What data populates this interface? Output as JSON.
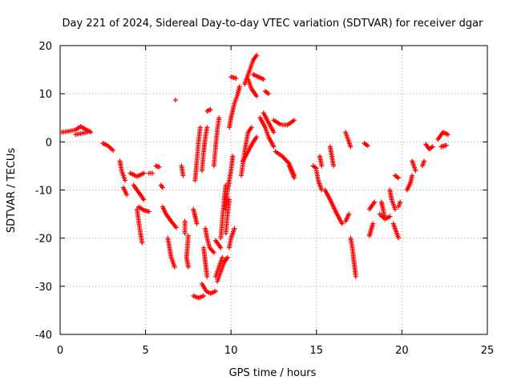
{
  "chart_data": {
    "type": "scatter",
    "title": "Day 221 of 2024, Sidereal Day-to-day VTEC variation (SDTVAR) for receiver dgar",
    "xlabel": "GPS time / hours",
    "ylabel": "SDTVAR / TECUs",
    "xlim": [
      0,
      25
    ],
    "ylim": [
      -40,
      20
    ],
    "x_ticks": [
      "0",
      "5",
      "10",
      "15",
      "20",
      "25"
    ],
    "y_ticks": [
      "20",
      "10",
      "0",
      "-10",
      "-20",
      "-30",
      "-40"
    ],
    "grid": true,
    "marker": "+",
    "colors": {
      "points": "#ff0000",
      "grid": "#a0a0a0",
      "axes": "#000000"
    },
    "series": [
      {
        "segments": [
          [
            [
              0.1,
              2
            ],
            [
              0.5,
              2.2
            ],
            [
              0.9,
              2.5
            ],
            [
              1.2,
              3.2
            ],
            [
              1.5,
              2.6
            ],
            [
              1.8,
              2
            ]
          ],
          [
            [
              0.9,
              1.5
            ],
            [
              1.3,
              1.8
            ],
            [
              1.6,
              2
            ]
          ],
          [
            [
              2.5,
              -0.3
            ],
            [
              2.8,
              -0.8
            ],
            [
              3.1,
              -1.8
            ]
          ],
          [
            [
              3.5,
              -4
            ],
            [
              3.6,
              -6
            ],
            [
              3.8,
              -8
            ]
          ],
          [
            [
              3.7,
              -9.5
            ],
            [
              3.9,
              -11
            ]
          ],
          [
            [
              4.1,
              -6.5
            ],
            [
              4.5,
              -7.2
            ],
            [
              4.9,
              -6.5
            ]
          ],
          [
            [
              4.3,
              -9
            ],
            [
              4.6,
              -10.5
            ],
            [
              4.9,
              -12
            ]
          ],
          [
            [
              4.5,
              -14
            ],
            [
              4.6,
              -16.5
            ],
            [
              4.7,
              -19
            ],
            [
              4.8,
              -21
            ]
          ],
          [
            [
              4.6,
              -13.5
            ],
            [
              4.9,
              -14.2
            ],
            [
              5.2,
              -14.5
            ]
          ],
          [
            [
              5.2,
              -6.5
            ],
            [
              5.4,
              -6.5
            ]
          ],
          [
            [
              5.6,
              -5
            ],
            [
              5.8,
              -5.2
            ]
          ],
          [
            [
              5.9,
              -9
            ],
            [
              6.0,
              -9.5
            ]
          ],
          [
            [
              6.0,
              -13.5
            ],
            [
              6.2,
              -15
            ],
            [
              6.5,
              -16.5
            ],
            [
              6.8,
              -17.8
            ]
          ],
          [
            [
              6.3,
              -20
            ],
            [
              6.4,
              -22
            ],
            [
              6.5,
              -24
            ],
            [
              6.7,
              -26
            ]
          ],
          [
            [
              6.75,
              8.7
            ]
          ],
          [
            [
              7.1,
              -5
            ],
            [
              7.2,
              -7
            ]
          ],
          [
            [
              7.3,
              -16.5
            ],
            [
              7.3,
              -19
            ]
          ],
          [
            [
              7.5,
              -19.5
            ],
            [
              7.45,
              -22
            ],
            [
              7.4,
              -24
            ],
            [
              7.5,
              -26
            ]
          ],
          [
            [
              7.8,
              -14
            ],
            [
              7.9,
              -15.5
            ],
            [
              8.0,
              -17
            ]
          ],
          [
            [
              7.9,
              -8
            ],
            [
              8.0,
              -4
            ],
            [
              8.1,
              0
            ],
            [
              8.2,
              3
            ]
          ],
          [
            [
              8.3,
              -6
            ],
            [
              8.4,
              -2
            ],
            [
              8.5,
              1
            ],
            [
              8.6,
              3
            ]
          ],
          [
            [
              7.8,
              -32
            ],
            [
              8.1,
              -32.4
            ],
            [
              8.4,
              -32
            ]
          ],
          [
            [
              8.3,
              -29.5
            ],
            [
              8.55,
              -31
            ],
            [
              8.8,
              -31.5
            ],
            [
              9.1,
              -31
            ]
          ],
          [
            [
              8.5,
              -18
            ],
            [
              8.6,
              -20
            ],
            [
              8.75,
              -22
            ],
            [
              9.0,
              -23
            ]
          ],
          [
            [
              8.4,
              -22
            ],
            [
              8.5,
              -25
            ],
            [
              8.6,
              -28
            ]
          ],
          [
            [
              8.6,
              6.4
            ],
            [
              8.8,
              6.7
            ]
          ],
          [
            [
              9.0,
              -5
            ],
            [
              9.1,
              -1
            ],
            [
              9.2,
              2.5
            ],
            [
              9.3,
              5
            ]
          ],
          [
            [
              9.1,
              -20.5
            ],
            [
              9.4,
              -22
            ]
          ],
          [
            [
              9.1,
              -28
            ],
            [
              9.3,
              -26
            ],
            [
              9.5,
              -24
            ]
          ],
          [
            [
              9.2,
              -29
            ],
            [
              9.4,
              -27
            ],
            [
              9.6,
              -25
            ],
            [
              9.8,
              -24
            ]
          ],
          [
            [
              9.4,
              -20
            ],
            [
              9.5,
              -16
            ],
            [
              9.6,
              -12
            ],
            [
              9.7,
              -9
            ]
          ],
          [
            [
              9.7,
              -14
            ],
            [
              9.8,
              -10
            ],
            [
              10.0,
              -6
            ],
            [
              10.1,
              -3
            ]
          ],
          [
            [
              9.7,
              -19
            ],
            [
              9.8,
              -15
            ],
            [
              9.9,
              -12
            ]
          ],
          [
            [
              9.9,
              -22
            ],
            [
              10.0,
              -20
            ],
            [
              10.2,
              -18
            ]
          ],
          [
            [
              10.0,
              5
            ],
            [
              10.2,
              8
            ],
            [
              10.4,
              10
            ],
            [
              10.5,
              11.5
            ]
          ],
          [
            [
              10.0,
              13.5
            ],
            [
              10.3,
              13.2
            ]
          ],
          [
            [
              9.9,
              3
            ],
            [
              10.0,
              5
            ]
          ],
          [
            [
              10.6,
              -7
            ],
            [
              10.8,
              -2
            ],
            [
              11.0,
              2
            ],
            [
              11.2,
              3
            ]
          ],
          [
            [
              10.7,
              -4
            ],
            [
              11.0,
              -2
            ],
            [
              11.3,
              0
            ],
            [
              11.5,
              1
            ]
          ],
          [
            [
              10.8,
              12
            ],
            [
              11.1,
              15
            ],
            [
              11.3,
              17
            ],
            [
              11.5,
              18
            ]
          ],
          [
            [
              11.0,
              13
            ],
            [
              11.2,
              11
            ],
            [
              11.5,
              9.5
            ]
          ],
          [
            [
              11.3,
              14
            ],
            [
              11.6,
              13.5
            ],
            [
              11.9,
              13
            ]
          ],
          [
            [
              12.0,
              10.5
            ],
            [
              12.2,
              10
            ]
          ],
          [
            [
              11.7,
              5
            ],
            [
              12.0,
              3
            ],
            [
              12.2,
              1
            ],
            [
              12.5,
              -1
            ]
          ],
          [
            [
              11.9,
              6
            ],
            [
              12.2,
              4
            ],
            [
              12.5,
              2
            ]
          ],
          [
            [
              12.6,
              -2
            ],
            [
              13.0,
              -3
            ],
            [
              13.4,
              -4.5
            ],
            [
              13.7,
              -7
            ]
          ],
          [
            [
              12.5,
              4.5
            ],
            [
              12.9,
              3.6
            ],
            [
              13.3,
              3.5
            ],
            [
              13.7,
              4.5
            ]
          ],
          [
            [
              13.4,
              -5
            ],
            [
              13.7,
              -7.5
            ]
          ],
          [
            [
              14.8,
              -5
            ],
            [
              15.0,
              -5.5
            ]
          ],
          [
            [
              15.0,
              -6
            ],
            [
              15.1,
              -8
            ],
            [
              15.3,
              -10
            ]
          ],
          [
            [
              15.2,
              -3
            ],
            [
              15.3,
              -5
            ]
          ],
          [
            [
              15.5,
              -10
            ],
            [
              15.8,
              -12
            ],
            [
              16.2,
              -15
            ],
            [
              16.5,
              -17
            ]
          ],
          [
            [
              15.8,
              -1
            ],
            [
              15.9,
              -3
            ],
            [
              16.0,
              -5
            ]
          ],
          [
            [
              16.7,
              -16.5
            ],
            [
              16.9,
              -15
            ]
          ],
          [
            [
              16.7,
              2
            ],
            [
              16.9,
              0
            ],
            [
              17.0,
              -1
            ]
          ],
          [
            [
              17.0,
              -20
            ],
            [
              17.1,
              -22
            ],
            [
              17.2,
              -25
            ],
            [
              17.3,
              -28
            ]
          ],
          [
            [
              17.8,
              -0.3
            ],
            [
              18.0,
              -0.8
            ]
          ],
          [
            [
              18.1,
              -19.5
            ],
            [
              18.3,
              -17
            ]
          ],
          [
            [
              18.1,
              -14
            ],
            [
              18.4,
              -12.5
            ]
          ],
          [
            [
              18.8,
              -12.5
            ],
            [
              18.9,
              -14
            ],
            [
              19.0,
              -16
            ]
          ],
          [
            [
              18.7,
              -15
            ],
            [
              19.0,
              -16
            ],
            [
              19.3,
              -15.5
            ]
          ],
          [
            [
              19.3,
              -10
            ],
            [
              19.4,
              -12
            ],
            [
              19.6,
              -14
            ]
          ],
          [
            [
              19.5,
              -17
            ],
            [
              19.7,
              -19
            ],
            [
              19.8,
              -20
            ]
          ],
          [
            [
              19.6,
              -7
            ],
            [
              19.8,
              -7.5
            ]
          ],
          [
            [
              19.8,
              -13.5
            ],
            [
              19.9,
              -12.5
            ]
          ],
          [
            [
              20.3,
              -10
            ],
            [
              20.5,
              -8.5
            ],
            [
              20.6,
              -7
            ]
          ],
          [
            [
              20.6,
              -4
            ],
            [
              20.8,
              -6
            ]
          ],
          [
            [
              21.2,
              -5
            ],
            [
              21.3,
              -4
            ]
          ],
          [
            [
              21.4,
              -0.5
            ],
            [
              21.6,
              -1.5
            ],
            [
              21.8,
              -1
            ]
          ],
          [
            [
              22.1,
              0.5
            ],
            [
              22.4,
              2
            ],
            [
              22.7,
              1.5
            ]
          ],
          [
            [
              22.3,
              -1
            ],
            [
              22.6,
              -0.7
            ]
          ]
        ]
      }
    ]
  }
}
